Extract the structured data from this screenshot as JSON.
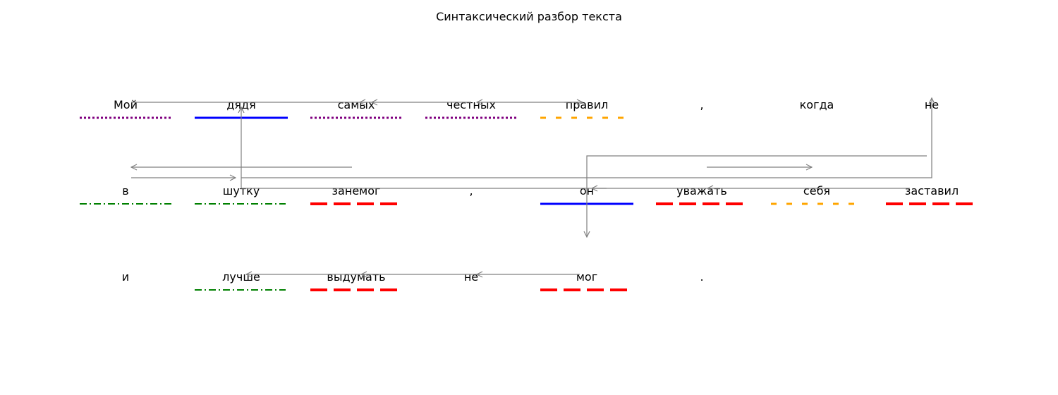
{
  "title": "Синтаксический разбор текста",
  "colors": {
    "subject": "#0000ff",
    "predicate": "#ff0000",
    "attribute": "#800080",
    "object": "#ffa500",
    "adverbial": "#008000",
    "arrow": "#808080"
  },
  "lines": [
    {
      "words": [
        {
          "text": "Мой",
          "role": "attribute"
        },
        {
          "text": "дядя",
          "role": "subject"
        },
        {
          "text": "самых",
          "role": "attribute"
        },
        {
          "text": "честных",
          "role": "attribute"
        },
        {
          "text": "правил",
          "role": "object"
        },
        {
          "text": ",",
          "role": "none"
        },
        {
          "text": "когда",
          "role": "none"
        },
        {
          "text": "не",
          "role": "none"
        }
      ]
    },
    {
      "words": [
        {
          "text": "в",
          "role": "adverbial"
        },
        {
          "text": "шутку",
          "role": "adverbial"
        },
        {
          "text": "занемог",
          "role": "predicate"
        },
        {
          "text": ",",
          "role": "none"
        },
        {
          "text": "он",
          "role": "subject"
        },
        {
          "text": "уважать",
          "role": "predicate"
        },
        {
          "text": "себя",
          "role": "object"
        },
        {
          "text": "заставил",
          "role": "predicate"
        }
      ]
    },
    {
      "words": [
        {
          "text": "и",
          "role": "none"
        },
        {
          "text": "лучше",
          "role": "adverbial"
        },
        {
          "text": "выдумать",
          "role": "predicate"
        },
        {
          "text": "не",
          "role": "none"
        },
        {
          "text": "мог",
          "role": "predicate"
        },
        {
          "text": ".",
          "role": "none"
        }
      ]
    }
  ]
}
